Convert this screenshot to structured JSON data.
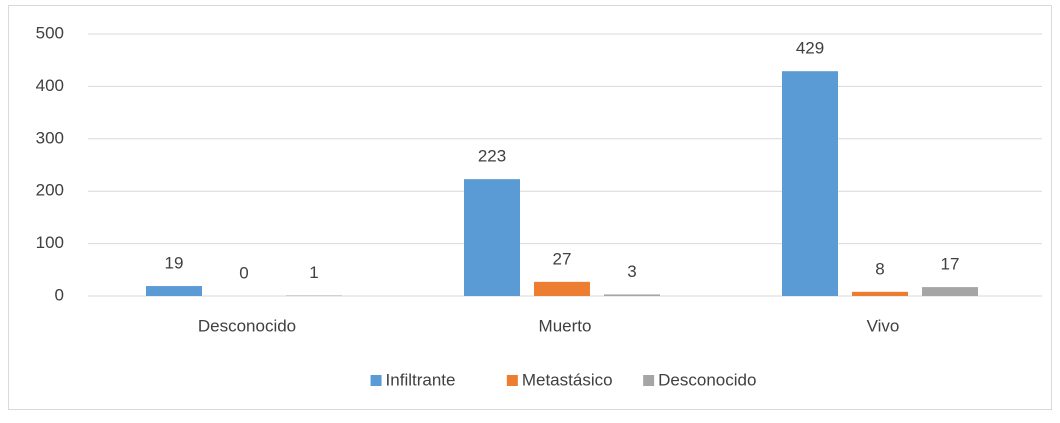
{
  "chart_data": {
    "type": "bar",
    "categories": [
      "Desconocido",
      "Muerto",
      "Vivo"
    ],
    "series": [
      {
        "name": "Infiltrante",
        "color": "#5b9bd5",
        "values": [
          19,
          223,
          429
        ]
      },
      {
        "name": "Metastásico",
        "color": "#ed7d31",
        "values": [
          0,
          27,
          8
        ]
      },
      {
        "name": "Desconocido",
        "color": "#a5a5a5",
        "values": [
          1,
          3,
          17
        ]
      }
    ],
    "ylim": [
      0,
      500
    ],
    "yticks": [
      0,
      100,
      200,
      300,
      400,
      500
    ],
    "grid": true,
    "legend": "bottom"
  }
}
